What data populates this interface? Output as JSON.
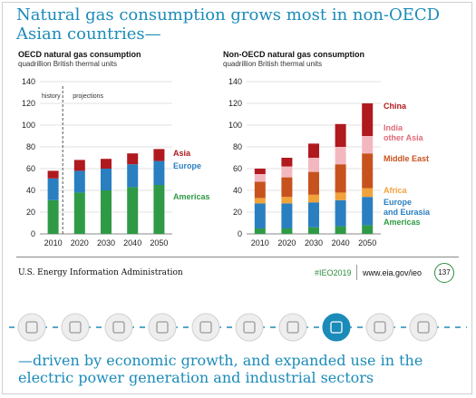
{
  "headline": "Natural gas consumption grows most in non-OECD Asian countries—",
  "bottom_text": "—driven by economic growth, and expanded use in the electric power generation and industrial sectors",
  "footer": {
    "agency": "U.S. Energy Information Administration",
    "tag": "#IEO2019",
    "url": "www.eia.gov/ieo",
    "page": "137"
  },
  "colors": {
    "headline": "#1b8bb9",
    "china": "#b0191e",
    "india_other_asia": "#f3b8bf",
    "middle_east": "#c8521e",
    "africa": "#f2a23a",
    "europe_eurasia": "#2a7fc1",
    "americas": "#2f9a45",
    "oecd_asia": "#b0191e",
    "oecd_europe": "#2a7fc1",
    "oecd_americas": "#2f9a45"
  },
  "icons": [
    "residential-icon",
    "commercial-icon",
    "buildings-icon",
    "transportation-icon",
    "electricity-icon",
    "industrial-icon",
    "petroleum-icon",
    "natural-gas-icon",
    "coal-icon",
    "renewables-icon"
  ],
  "chart_data": [
    {
      "type": "bar",
      "stacked": true,
      "title": "OECD natural gas consumption",
      "subtitle": "quadrillion British thermal units",
      "annotations": [
        "history",
        "projections"
      ],
      "categories": [
        "2010",
        "2020",
        "2030",
        "2040",
        "2050"
      ],
      "ylim": [
        0,
        140
      ],
      "yticks": [
        0,
        20,
        40,
        60,
        80,
        100,
        120,
        140
      ],
      "grid": true,
      "series": [
        {
          "name": "Americas",
          "color": "#2f9a45",
          "values": [
            31,
            38,
            40,
            43,
            45
          ]
        },
        {
          "name": "Europe",
          "color": "#2a7fc1",
          "values": [
            20,
            20,
            20,
            21,
            22
          ]
        },
        {
          "name": "Asia",
          "color": "#b0191e",
          "values": [
            7,
            10,
            9,
            10,
            11
          ]
        }
      ]
    },
    {
      "type": "bar",
      "stacked": true,
      "title": "Non-OECD natural gas consumption",
      "subtitle": "quadrillion British thermal units",
      "categories": [
        "2010",
        "2020",
        "2030",
        "2040",
        "2050"
      ],
      "ylim": [
        0,
        140
      ],
      "yticks": [
        0,
        20,
        40,
        60,
        80,
        100,
        120,
        140
      ],
      "grid": true,
      "series": [
        {
          "name": "Americas",
          "color": "#2f9a45",
          "values": [
            5,
            5,
            6,
            7,
            8
          ]
        },
        {
          "name": "Europe and Eurasia",
          "color": "#2a7fc1",
          "values": [
            23,
            23,
            23,
            24,
            26
          ]
        },
        {
          "name": "Africa",
          "color": "#f2a23a",
          "values": [
            5,
            6,
            7,
            7,
            8
          ]
        },
        {
          "name": "Middle East",
          "color": "#c8521e",
          "values": [
            15,
            18,
            21,
            26,
            32
          ]
        },
        {
          "name": "India other Asia",
          "color": "#f3b8bf",
          "values": [
            7,
            10,
            13,
            16,
            16
          ]
        },
        {
          "name": "China",
          "color": "#b0191e",
          "values": [
            5,
            8,
            13,
            21,
            30
          ]
        }
      ]
    }
  ],
  "legend_left": [
    {
      "label": "Asia",
      "color": "#b0191e"
    },
    {
      "label": "Europe",
      "color": "#2a7fc1"
    },
    {
      "label": "Americas",
      "color": "#2f9a45"
    }
  ],
  "legend_right": [
    {
      "label": "China",
      "color": "#b0191e"
    },
    {
      "label": "India",
      "color": "#e06a78"
    },
    {
      "label": "other Asia",
      "color": "#e06a78"
    },
    {
      "label": "Middle East",
      "color": "#c8521e"
    },
    {
      "label": "Africa",
      "color": "#f2a23a"
    },
    {
      "label": "Europe",
      "color": "#2a7fc1"
    },
    {
      "label": "and Eurasia",
      "color": "#2a7fc1"
    },
    {
      "label": "Americas",
      "color": "#2f9a45"
    }
  ]
}
